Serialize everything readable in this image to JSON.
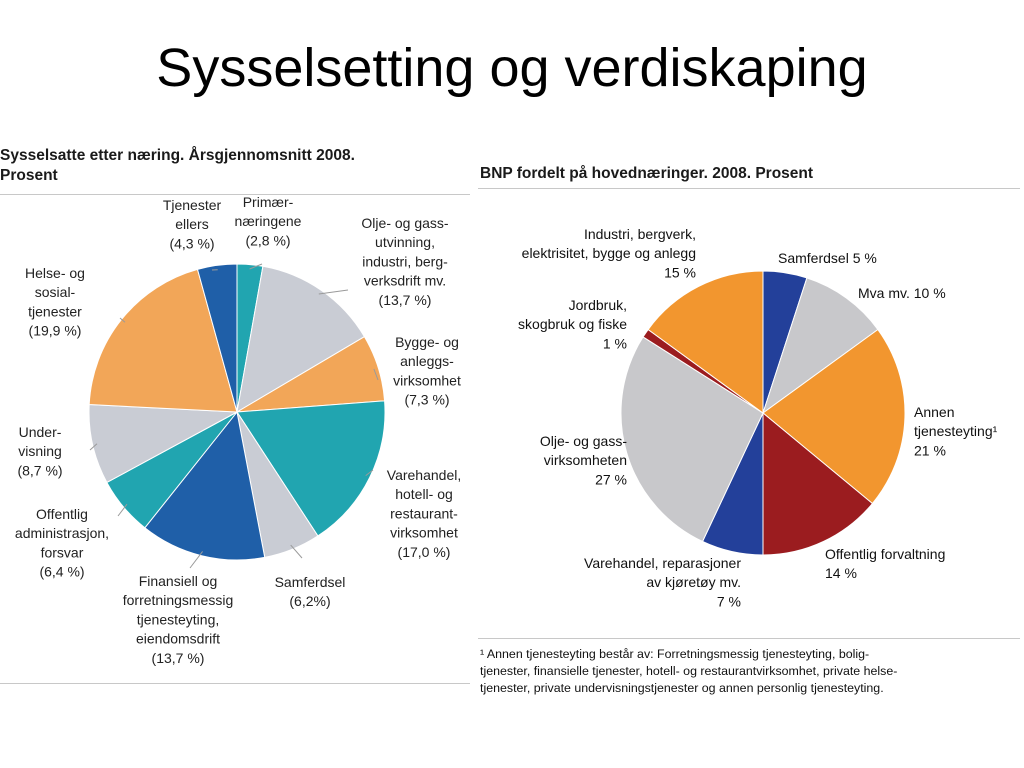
{
  "slide": {
    "title": "Sysselsetting og verdiskaping"
  },
  "chart_data": [
    {
      "type": "pie",
      "title": "Sysselsatte etter næring. Årsgjennomsnitt 2008. Prosent",
      "title_lines": [
        "Sysselsatte etter næring. Årsgjennomsnitt 2008.",
        "Prosent"
      ],
      "start": "12 o'clock",
      "direction": "clockwise",
      "slices": [
        {
          "name": "Primærnæringene",
          "value": 2.8,
          "color": "#21a5b0",
          "label_lines": [
            "Primær-",
            "næringene",
            "(2,8 %)"
          ]
        },
        {
          "name": "Olje- og gassutvinning, industri, bergverksdrift mv.",
          "value": 13.7,
          "color": "#c9ccd4",
          "label_lines": [
            "Olje- og gass-",
            "utvinning,",
            "industri, berg-",
            "verksdrift mv.",
            "(13,7 %)"
          ]
        },
        {
          "name": "Bygge- og anleggsvirksomhet",
          "value": 7.3,
          "color": "#f2a658",
          "label_lines": [
            "Bygge- og",
            "anleggs-",
            "virksomhet",
            "(7,3 %)"
          ]
        },
        {
          "name": "Varehandel, hotell- og restaurantvirksomhet",
          "value": 17.0,
          "color": "#21a5b0",
          "label_lines": [
            "Varehandel,",
            "hotell- og",
            "restaurant-",
            "virksomhet",
            "(17,0 %)"
          ]
        },
        {
          "name": "Samferdsel",
          "value": 6.2,
          "color": "#c9ccd4",
          "label_lines": [
            "Samferdsel",
            "(6,2%)"
          ]
        },
        {
          "name": "Finansiell og forretningsmessig tjenesteyting, eiendomsdrift",
          "value": 13.7,
          "color": "#1f5fa8",
          "label_lines": [
            "Finansiell og",
            "forretningsmessig",
            "tjenesteyting,",
            "eiendomsdrift",
            "(13,7 %)"
          ]
        },
        {
          "name": "Offentlig administrasjon, forsvar",
          "value": 6.4,
          "color": "#21a5b0",
          "label_lines": [
            "Offentlig",
            "administrasjon,",
            "forsvar",
            "(6,4 %)"
          ]
        },
        {
          "name": "Undervisning",
          "value": 8.7,
          "color": "#c9ccd4",
          "label_lines": [
            "Under-",
            "visning",
            "(8,7 %)"
          ]
        },
        {
          "name": "Helse- og sosialtjenester",
          "value": 19.9,
          "color": "#f2a658",
          "label_lines": [
            "Helse- og",
            "sosial-",
            "tjenester",
            "(19,9 %)"
          ]
        },
        {
          "name": "Tjenester ellers",
          "value": 4.3,
          "color": "#1f5fa8",
          "label_lines": [
            "Tjenester",
            "ellers",
            "(4,3 %)"
          ]
        }
      ]
    },
    {
      "type": "pie",
      "title": "BNP fordelt på hovednæringer. 2008. Prosent",
      "start": "12 o'clock",
      "direction": "clockwise",
      "slices": [
        {
          "name": "Samferdsel",
          "value": 5,
          "color": "#23409a",
          "label_lines": [
            "Samferdsel 5 %"
          ]
        },
        {
          "name": "Mva mv.",
          "value": 10,
          "color": "#c8c8cb",
          "label_lines": [
            "Mva mv. 10 %"
          ]
        },
        {
          "name": "Annen tjenesteyting",
          "value": 21,
          "color": "#f2962f",
          "label_lines": [
            "Annen",
            "tjenesteyting¹",
            "21 %"
          ]
        },
        {
          "name": "Offentlig forvaltning",
          "value": 14,
          "color": "#9b1c1f",
          "label_lines": [
            "Offentlig forvaltning",
            "14 %"
          ]
        },
        {
          "name": "Varehandel, reparasjoner av kjøretøy mv.",
          "value": 7,
          "color": "#23409a",
          "label_lines": [
            "Varehandel, reparasjoner",
            "av kjøretøy mv.",
            "7 %"
          ]
        },
        {
          "name": "Olje- og gassvirksomheten",
          "value": 27,
          "color": "#c8c8cb",
          "label_lines": [
            "Olje- og gass-",
            "virksomheten",
            "27 %"
          ]
        },
        {
          "name": "Jordbruk, skogbruk og fiske",
          "value": 1,
          "color": "#9b1c1f",
          "label_lines": [
            "Jordbruk,",
            "skogbruk og fiske",
            "1 %"
          ]
        },
        {
          "name": "Industri, bergverk, elektrisitet, bygge og anlegg",
          "value": 15,
          "color": "#f2962f",
          "label_lines": [
            "Industri, bergverk,",
            "elektrisitet, bygge og anlegg",
            "15 %"
          ]
        }
      ],
      "footnote": "¹ Annen tjenesteyting består av: Forretningsmessig tjenesteyting, bolig-tjenester, finansielle tjenester, hotell- og restaurantvirksomhet, private helse-tjenester, private undervisningstjenester og annen personlig tjenesteyting.",
      "footnote_lines": [
        "¹ Annen tjenesteyting består av: Forretningsmessig tjenesteyting, bolig-",
        "tjenester, finansielle tjenester, hotell- og restaurantvirksomhet, private helse-",
        "tjenester, private undervisningstjenester og annen personlig tjenesteyting."
      ]
    }
  ]
}
